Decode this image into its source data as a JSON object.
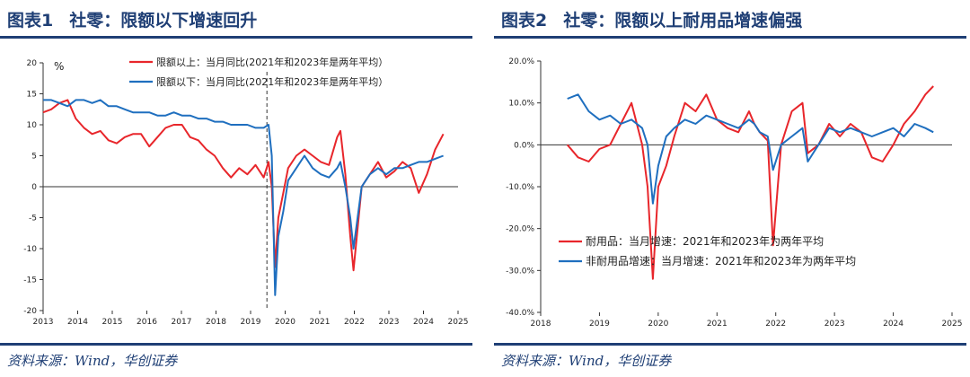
{
  "panels": [
    {
      "num": "图表1",
      "title": "社零：限额以下增速回升",
      "source": "资料来源：Wind，华创证券"
    },
    {
      "num": "图表2",
      "title": "社零：限额以上耐用品增速偏强",
      "source": "资料来源：Wind，华创证券"
    }
  ],
  "chart_data": [
    {
      "type": "line",
      "title": "社零：限额以下增速回升",
      "ylabel": "%",
      "ylim": [
        -20,
        20
      ],
      "yticks": [
        "20",
        "15",
        "10",
        "5",
        "0",
        "-5",
        "-10",
        "-15",
        "-20"
      ],
      "xticks": [
        "2013",
        "2014",
        "2015",
        "2016",
        "2017",
        "2018",
        "2019",
        "2020",
        "2021",
        "2022",
        "2023",
        "2024",
        "2025"
      ],
      "annotation": "vertical dashed line at 2020-01",
      "colors": {
        "limit_above": "#e8262b",
        "limit_below": "#1f6fbf"
      },
      "series": [
        {
          "name": "限额以上：当月同比(2021年和2023年是两年平均）",
          "color": "#e8262b",
          "x": [
            2013.0,
            2013.25,
            2013.5,
            2013.75,
            2014.0,
            2014.25,
            2014.5,
            2014.75,
            2015.0,
            2015.25,
            2015.5,
            2015.75,
            2016.0,
            2016.25,
            2016.5,
            2016.75,
            2017.0,
            2017.25,
            2017.5,
            2017.75,
            2018.0,
            2018.25,
            2018.5,
            2018.75,
            2019.0,
            2019.25,
            2019.5,
            2019.75,
            2019.9,
            2020.0,
            2020.1,
            2020.2,
            2020.35,
            2020.5,
            2020.75,
            2021.0,
            2021.25,
            2021.5,
            2021.75,
            2022.0,
            2022.1,
            2022.25,
            2022.4,
            2022.5,
            2022.75,
            2023.0,
            2023.25,
            2023.5,
            2023.75,
            2024.0,
            2024.25,
            2024.5,
            2024.75,
            2025.0,
            2025.25
          ],
          "values": [
            12,
            12.5,
            13.5,
            14,
            11,
            9.5,
            8.5,
            9,
            7.5,
            7,
            8,
            8.5,
            8.5,
            6.5,
            8,
            9.5,
            10,
            10,
            8,
            7.5,
            6,
            5,
            3,
            1.5,
            3,
            2,
            3.5,
            1.5,
            4,
            0,
            -13,
            -5,
            -1,
            3,
            5,
            6,
            5,
            4,
            3.5,
            8,
            9,
            2,
            -8,
            -13.5,
            0,
            2,
            4,
            1.5,
            2.5,
            4,
            3,
            -1,
            2,
            6,
            8.5
          ]
        },
        {
          "name": "限额以下：当月同比(2021年和2023年是两年平均）",
          "color": "#1f6fbf",
          "x": [
            2013.0,
            2013.25,
            2013.5,
            2013.75,
            2014.0,
            2014.25,
            2014.5,
            2014.75,
            2015.0,
            2015.25,
            2015.5,
            2015.75,
            2016.0,
            2016.25,
            2016.5,
            2016.75,
            2017.0,
            2017.25,
            2017.5,
            2017.75,
            2018.0,
            2018.25,
            2018.5,
            2018.75,
            2019.0,
            2019.25,
            2019.5,
            2019.75,
            2019.9,
            2020.0,
            2020.1,
            2020.2,
            2020.35,
            2020.5,
            2020.75,
            2021.0,
            2021.25,
            2021.5,
            2021.75,
            2022.0,
            2022.1,
            2022.25,
            2022.4,
            2022.5,
            2022.75,
            2023.0,
            2023.25,
            2023.5,
            2023.75,
            2024.0,
            2024.25,
            2024.5,
            2024.75,
            2025.0,
            2025.25
          ],
          "values": [
            14,
            14,
            13.5,
            13,
            14,
            14,
            13.5,
            14,
            13,
            13,
            12.5,
            12,
            12,
            12,
            11.5,
            11.5,
            12,
            11.5,
            11.5,
            11,
            11,
            10.5,
            10.5,
            10,
            10,
            10,
            9.5,
            9.5,
            10,
            5,
            -17.5,
            -8,
            -4,
            1,
            3,
            5,
            3,
            2,
            1.5,
            3,
            4,
            0,
            -5,
            -10,
            0,
            2,
            3,
            2,
            3,
            3,
            3.5,
            4,
            4,
            4.5,
            5
          ]
        }
      ]
    },
    {
      "type": "line",
      "title": "社零：限额以上耐用品增速偏强",
      "ylim": [
        -40,
        20
      ],
      "yticks": [
        "20.0%",
        "10.0%",
        "0.0%",
        "-10.0%",
        "-20.0%",
        "-30.0%",
        "-40.0%"
      ],
      "xticks": [
        "2018",
        "2019",
        "2020",
        "2021",
        "2022",
        "2023",
        "2024",
        "2025"
      ],
      "series": [
        {
          "name": "耐用品：当月增速：2021年和2023年为两年平均",
          "color": "#e8262b",
          "x": [
            2018.5,
            2018.7,
            2018.9,
            2019.1,
            2019.3,
            2019.5,
            2019.7,
            2019.9,
            2020.0,
            2020.1,
            2020.2,
            2020.35,
            2020.5,
            2020.7,
            2020.9,
            2021.1,
            2021.3,
            2021.5,
            2021.7,
            2021.9,
            2022.0,
            2022.1,
            2022.25,
            2022.35,
            2022.5,
            2022.7,
            2022.9,
            2023.0,
            2023.2,
            2023.4,
            2023.6,
            2023.8,
            2024.0,
            2024.2,
            2024.4,
            2024.6,
            2024.8,
            2025.0,
            2025.2,
            2025.35
          ],
          "values": [
            0,
            -3,
            -4,
            -1,
            0,
            5,
            10,
            0,
            -10,
            -32,
            -10,
            -5,
            2,
            10,
            8,
            12,
            6,
            4,
            3,
            8,
            5,
            3,
            1,
            -24,
            0,
            8,
            10,
            -2,
            0,
            5,
            2,
            5,
            3,
            -3,
            -4,
            0,
            5,
            8,
            12,
            14
          ]
        },
        {
          "name": "非耐用品增速：当月增速：2021年和2023年为两年平均",
          "color": "#1f6fbf",
          "x": [
            2018.5,
            2018.7,
            2018.9,
            2019.1,
            2019.3,
            2019.5,
            2019.7,
            2019.9,
            2020.0,
            2020.1,
            2020.2,
            2020.35,
            2020.5,
            2020.7,
            2020.9,
            2021.1,
            2021.3,
            2021.5,
            2021.7,
            2021.9,
            2022.0,
            2022.1,
            2022.25,
            2022.35,
            2022.5,
            2022.7,
            2022.9,
            2023.0,
            2023.2,
            2023.4,
            2023.6,
            2023.8,
            2024.0,
            2024.2,
            2024.4,
            2024.6,
            2024.8,
            2025.0,
            2025.2,
            2025.35
          ],
          "values": [
            11,
            12,
            8,
            6,
            7,
            5,
            6,
            4,
            0,
            -14,
            -5,
            2,
            4,
            6,
            5,
            7,
            6,
            5,
            4,
            6,
            5,
            3,
            2,
            -6,
            0,
            2,
            4,
            -4,
            0,
            4,
            3,
            4,
            3,
            2,
            3,
            4,
            2,
            5,
            4,
            3
          ]
        }
      ]
    }
  ]
}
